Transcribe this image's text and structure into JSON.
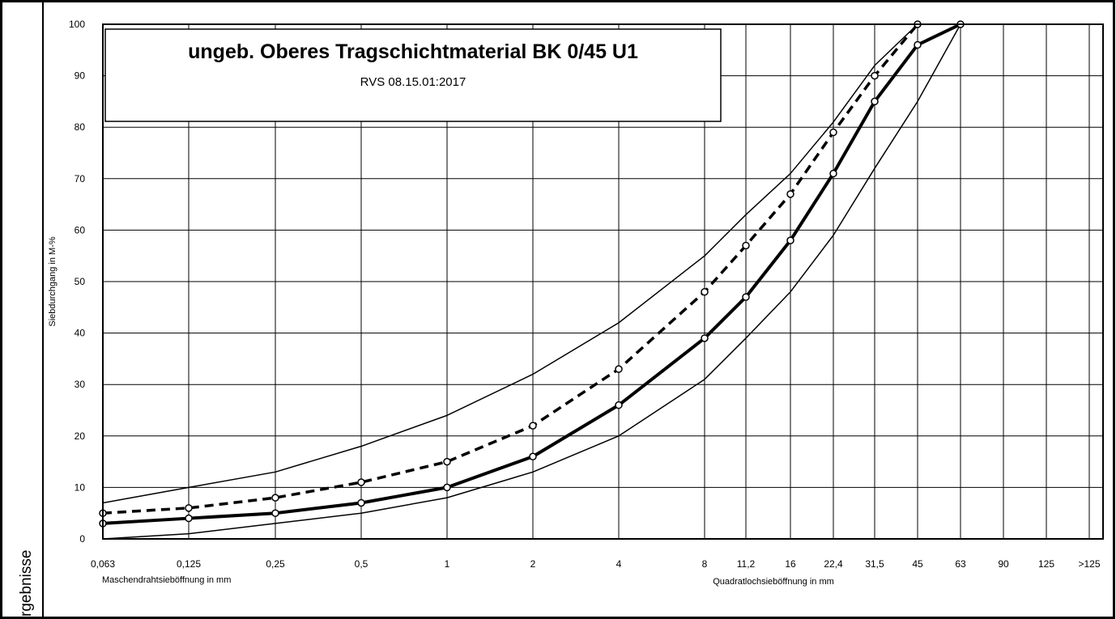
{
  "side_label": "rgebnisse",
  "chart_data": {
    "type": "line",
    "title": "ungeb. Oberes Tragschichtmaterial BK 0/45 U1",
    "subtitle": "RVS 08.15.01:2017",
    "ylabel": "Siebdurchgang in M-%",
    "xlabel_left": "Maschendrahtsieböffnung in mm",
    "xlabel_right": "Quadratlochsieböffnung in mm",
    "ylim": [
      0,
      100
    ],
    "yticks": [
      "0",
      "10",
      "20",
      "30",
      "40",
      "50",
      "60",
      "70",
      "80",
      "90",
      "100"
    ],
    "x_categories": [
      "0,063",
      "0,125",
      "0,25",
      "0,5",
      "1",
      "2",
      "4",
      "8",
      "11,2",
      "16",
      "22,4",
      "31,5",
      "45",
      "63",
      "90",
      "125",
      ">125"
    ],
    "grid": true,
    "series": [
      {
        "style": "thin",
        "x": [
          "0,063",
          "0,125",
          "0,25",
          "0,5",
          "1",
          "2",
          "4",
          "8",
          "11,2",
          "16",
          "22,4",
          "31,5",
          "45",
          "63"
        ],
        "values": [
          7,
          10,
          13,
          18,
          24,
          32,
          42,
          55,
          63,
          71,
          81,
          92,
          100,
          100
        ]
      },
      {
        "style": "thin",
        "x": [
          "0,063",
          "0,125",
          "0,25",
          "0,5",
          "1",
          "2",
          "4",
          "8",
          "11,2",
          "16",
          "22,4",
          "31,5",
          "45",
          "63"
        ],
        "values": [
          0,
          1,
          3,
          5,
          8,
          13,
          20,
          31,
          39,
          48,
          59,
          72,
          85,
          100
        ]
      },
      {
        "style": "dashed",
        "x": [
          "0,063",
          "0,125",
          "0,25",
          "0,5",
          "1",
          "2",
          "4",
          "8",
          "11,2",
          "16",
          "22,4",
          "31,5",
          "45"
        ],
        "values": [
          5,
          6,
          8,
          11,
          15,
          22,
          33,
          48,
          57,
          67,
          79,
          90,
          100
        ]
      },
      {
        "style": "thick",
        "x": [
          "0,063",
          "0,125",
          "0,25",
          "0,5",
          "1",
          "2",
          "4",
          "8",
          "11,2",
          "16",
          "22,4",
          "31,5",
          "45",
          "63"
        ],
        "values": [
          3,
          4,
          5,
          7,
          10,
          16,
          26,
          39,
          47,
          58,
          71,
          85,
          96,
          100
        ]
      }
    ],
    "colors": {
      "line": "#000000",
      "grid": "#000000",
      "background": "#ffffff"
    }
  }
}
